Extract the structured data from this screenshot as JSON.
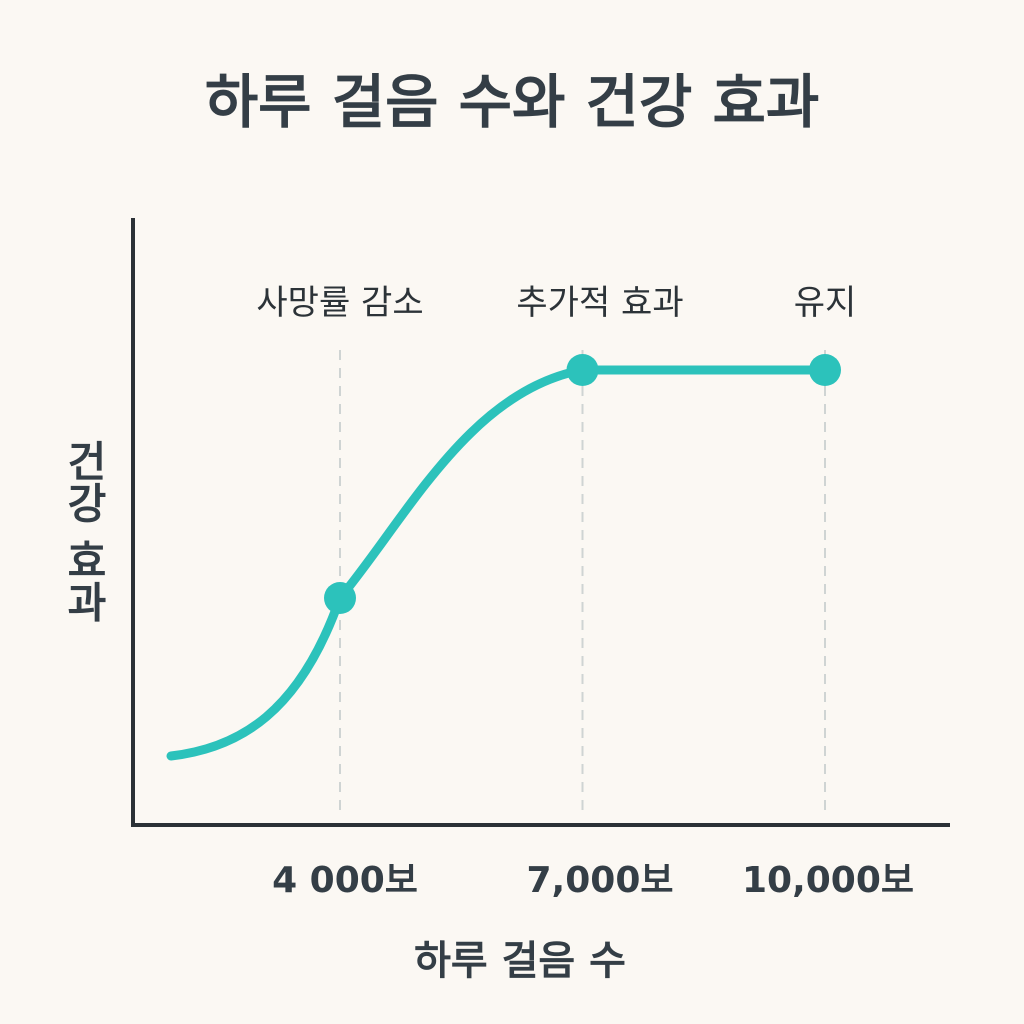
{
  "chart_data": {
    "type": "line",
    "title": "하루 걸음 수와 건강 효과",
    "xlabel": "하루 걸음 수",
    "ylabel": "건강 효과",
    "categories": [
      "4 000보",
      "7,000보",
      "10,000보"
    ],
    "series": [
      {
        "x": [
          4000,
          7000,
          10000
        ],
        "values": [
          0.4,
          1.0,
          1.0
        ]
      }
    ],
    "annotations": [
      "사망률 감소",
      "추가적 효과",
      "유지"
    ],
    "grid": "vertical dashed guide lines at marked points",
    "colors": {
      "line": "#2cc2bb",
      "axis": "#2b3136",
      "guide": "#cfd4d3",
      "text": "#343e46",
      "background": "#fbf8f3"
    }
  }
}
